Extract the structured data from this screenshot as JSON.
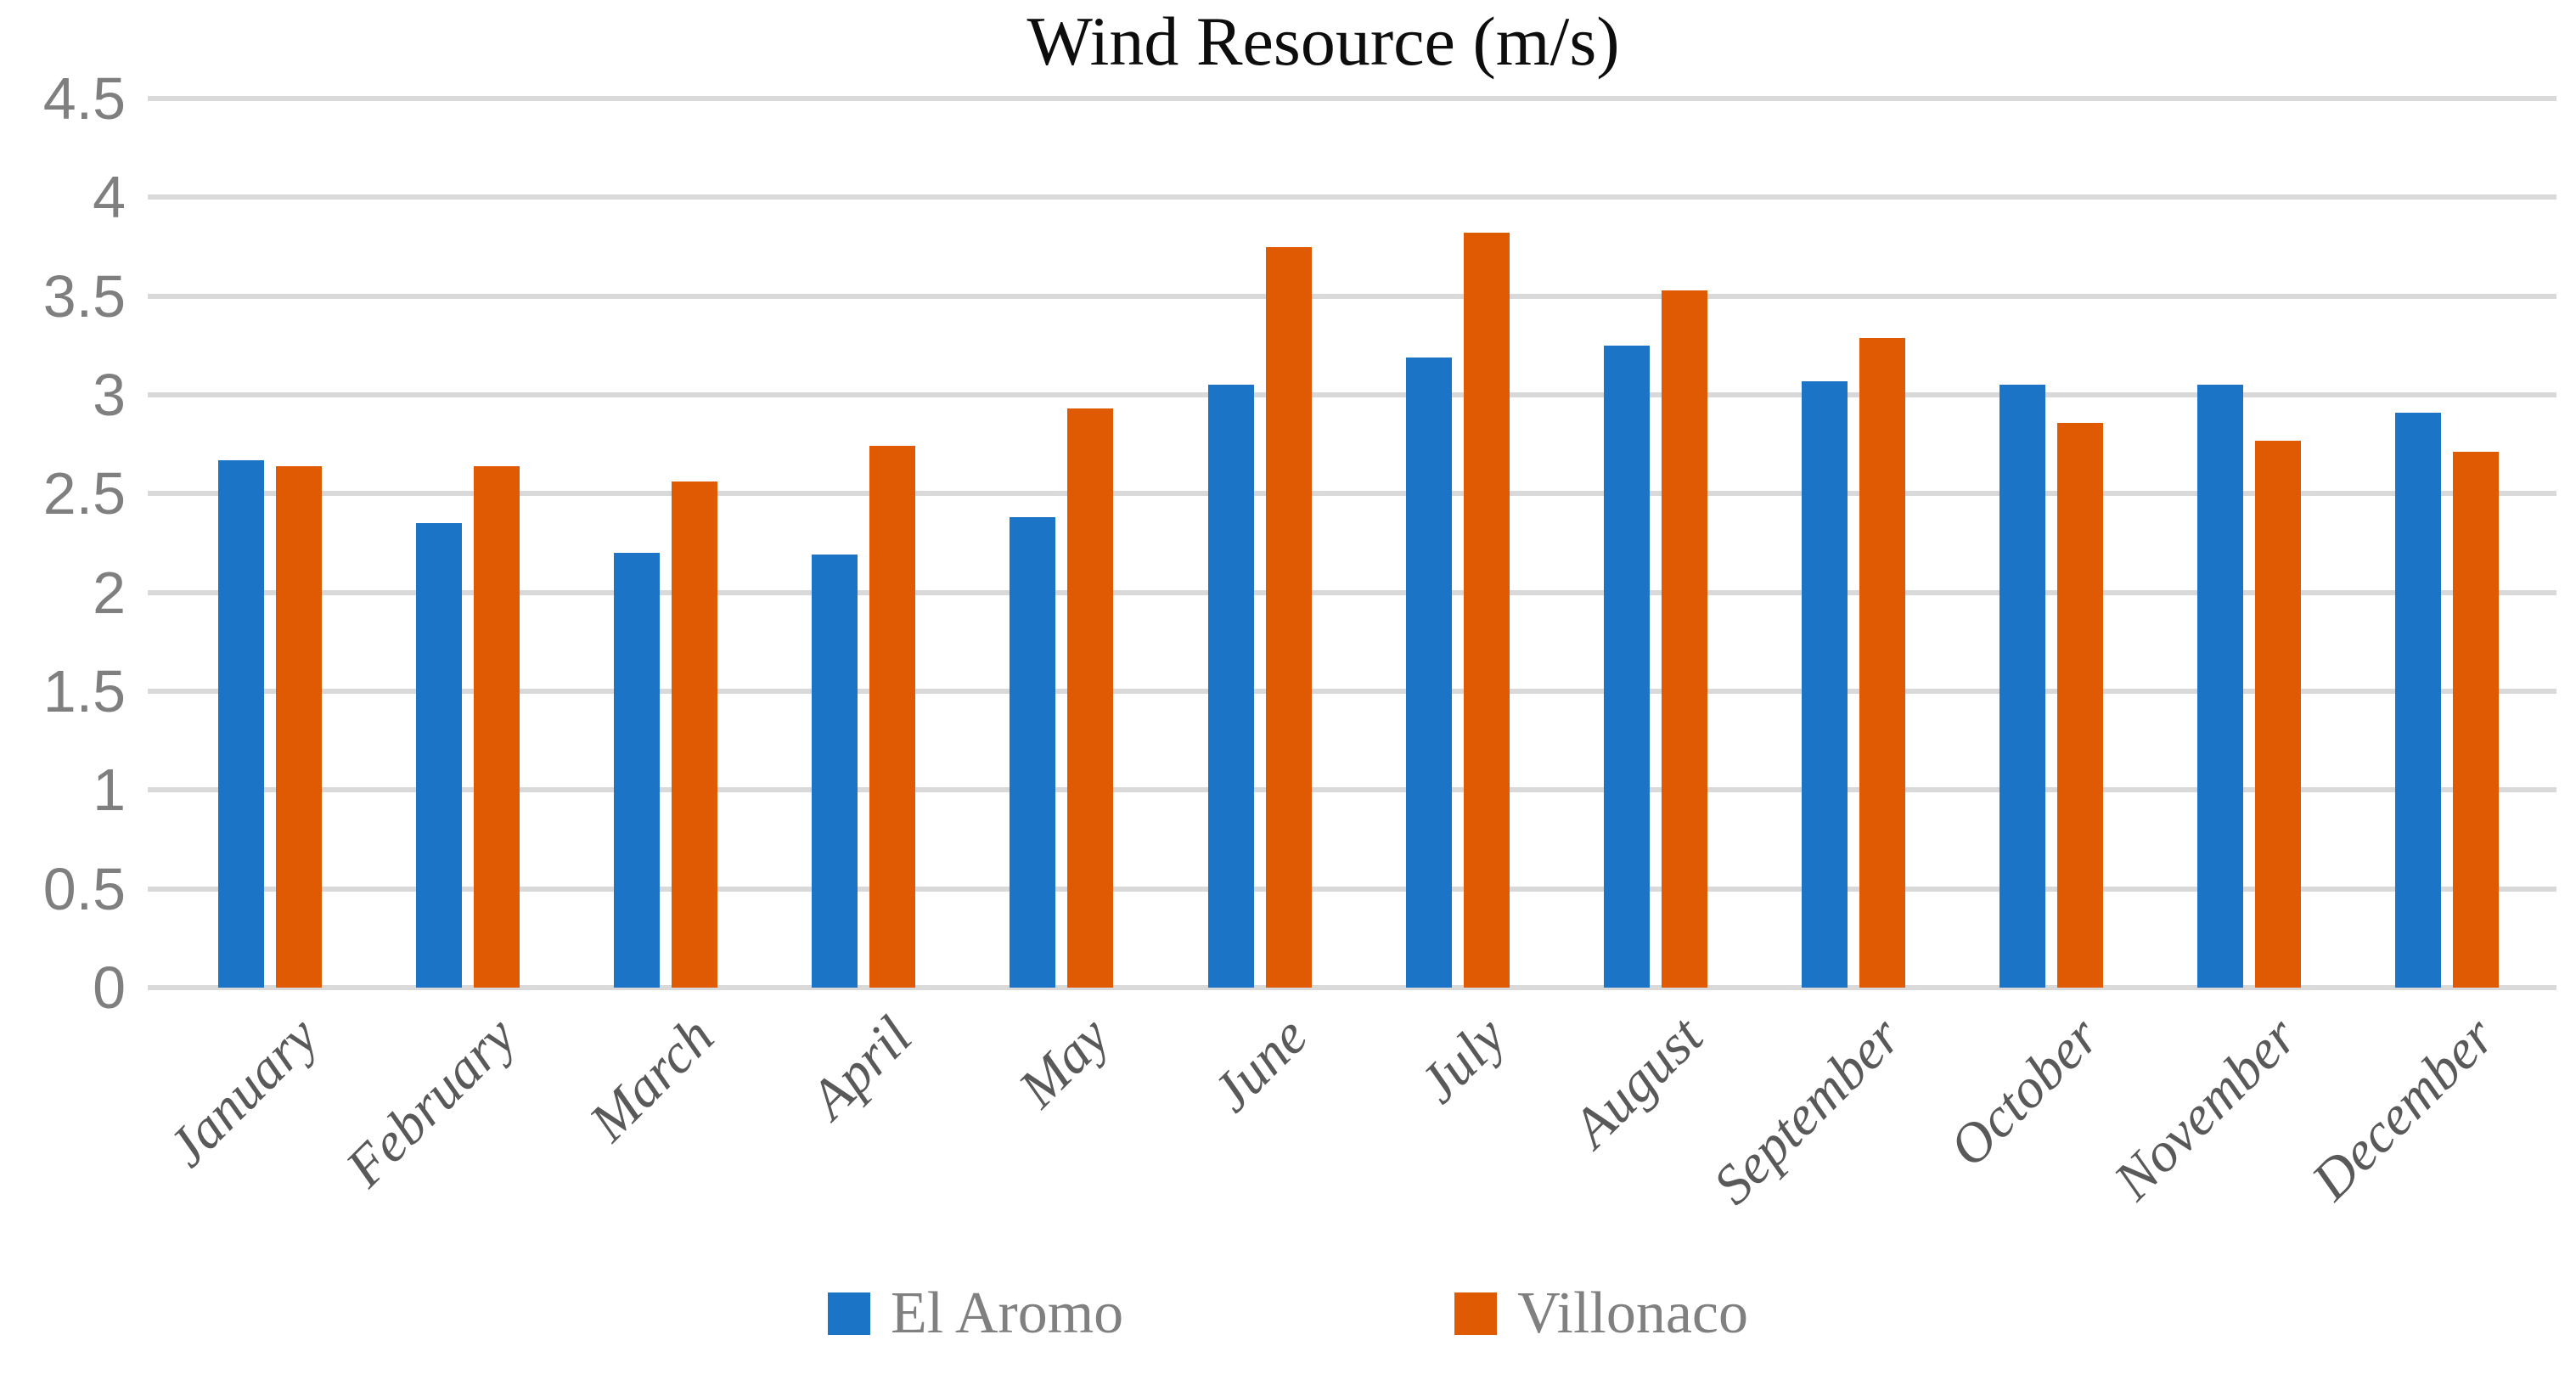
{
  "title": "Wind Resource (m/s)",
  "chart_data": {
    "type": "bar",
    "title": "Wind Resource (m/s)",
    "categories": [
      "January",
      "February",
      "March",
      "April",
      "May",
      "June",
      "July",
      "August",
      "September",
      "October",
      "November",
      "December"
    ],
    "series": [
      {
        "name": "El Aromo",
        "color": "#1B74C5",
        "values": [
          2.67,
          2.35,
          2.2,
          2.19,
          2.38,
          3.05,
          3.19,
          3.25,
          3.07,
          3.05,
          3.05,
          2.91
        ]
      },
      {
        "name": "Villonaco",
        "color": "#E05A04",
        "values": [
          2.64,
          2.64,
          2.56,
          2.74,
          2.93,
          3.75,
          3.82,
          3.53,
          3.29,
          2.86,
          2.77,
          2.71
        ]
      }
    ],
    "ylim": [
      0,
      4.5
    ],
    "yticks": [
      0,
      0.5,
      1,
      1.5,
      2,
      2.5,
      3,
      3.5,
      4,
      4.5
    ],
    "xlabel": "",
    "ylabel": "",
    "grid": "horizontal",
    "gridline_color": "#D9D9D9",
    "tick_label_color": "#7F7F7F",
    "category_label_color": "#595959",
    "legend_position": "bottom",
    "legend_text_color": "#808080"
  }
}
